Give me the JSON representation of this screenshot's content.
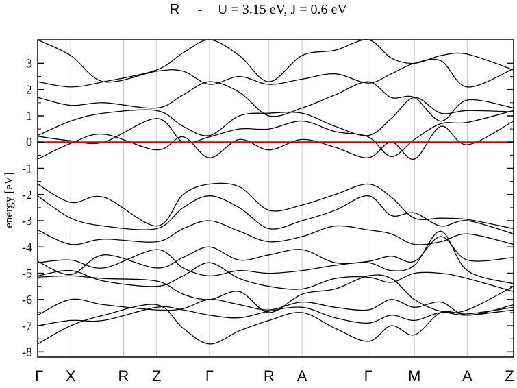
{
  "chart_data": {
    "type": "line",
    "title_prefix": "R",
    "title_dash": "-",
    "title_params": "U = 3.15 eV,  J = 0.6 eV",
    "ylabel": "energy [eV]",
    "xlabel": "",
    "ylim": [
      -8.2,
      3.9
    ],
    "yticks": [
      3,
      2,
      1,
      0,
      -1,
      -2,
      -3,
      -4,
      -5,
      -6,
      -7,
      -8
    ],
    "ytick_labels": [
      "3",
      "2",
      "1",
      "0",
      "-1",
      "-2",
      "-3",
      "-4",
      "-5",
      "-6",
      "-7",
      "-8"
    ],
    "kpoints": [
      {
        "label": "Γ",
        "x": 0
      },
      {
        "label": "X",
        "x": 0.5
      },
      {
        "label": "R",
        "x": 1.3
      },
      {
        "label": "Z",
        "x": 1.8
      },
      {
        "label": "Γ",
        "x": 2.6
      },
      {
        "label": "R",
        "x": 3.5
      },
      {
        "label": "A",
        "x": 4.0
      },
      {
        "label": "Γ",
        "x": 5.0
      },
      {
        "label": "M",
        "x": 5.7
      },
      {
        "label": "A",
        "x": 6.5
      },
      {
        "label": "Z",
        "x": 7.2
      }
    ],
    "fermi_level": 0,
    "fermi_color": "#e00000",
    "band_color": "#000000",
    "grid_color": "#c8c8c8",
    "grid": "vertical lines at k-points",
    "series": [
      {
        "values": [
          -7.7,
          -7.0,
          -6.6,
          -6.2,
          -7.1,
          -7.7,
          -7.2,
          -6.8,
          -6.5,
          -7.1,
          -7.6,
          -7.0,
          -7.35,
          -6.5,
          -6.55,
          -6.3
        ]
      },
      {
        "values": [
          -7.0,
          -6.8,
          -6.8,
          -6.3,
          -6.4,
          -6.6,
          -6.7,
          -6.45,
          -6.3,
          -6.7,
          -6.9,
          -6.6,
          -6.8,
          -6.5,
          -6.6,
          -6.4
        ]
      },
      {
        "values": [
          -6.6,
          -6.0,
          -6.2,
          -6.4,
          -6.35,
          -6.0,
          -6.2,
          -6.4,
          -6.1,
          -6.3,
          -6.4,
          -6.0,
          -6.3,
          -6.1,
          -6.6,
          -6.2
        ]
      },
      {
        "values": [
          -5.15,
          -5.1,
          -5.2,
          -5.3,
          -5.8,
          -6.0,
          -5.7,
          -6.5,
          -5.8,
          -5.6,
          -5.1,
          -5.2,
          -6.0,
          -6.45,
          -6.4,
          -5.5
        ]
      },
      {
        "values": [
          -5.1,
          -4.9,
          -5.3,
          -5.5,
          -5.1,
          -4.6,
          -5.2,
          -5.5,
          -5.6,
          -5.2,
          -5.15,
          -5.35,
          -5.0,
          -5.0,
          -5.2,
          -5.7
        ]
      },
      {
        "values": [
          -4.6,
          -4.5,
          -4.8,
          -4.1,
          -4.8,
          -5.1,
          -4.9,
          -5.0,
          -4.9,
          -4.7,
          -4.6,
          -4.9,
          -4.7,
          -3.4,
          -4.9,
          -5.4
        ]
      },
      {
        "values": [
          -4.55,
          -5.05,
          -4.3,
          -4.8,
          -4.4,
          -4.0,
          -4.5,
          -4.3,
          -4.1,
          -4.6,
          -4.55,
          -4.35,
          -4.55,
          -3.6,
          -4.5,
          -4.4
        ]
      },
      {
        "values": [
          -3.35,
          -3.9,
          -3.7,
          -3.8,
          -3.3,
          -3.0,
          -3.4,
          -3.8,
          -3.6,
          -3.2,
          -3.35,
          -3.5,
          -3.9,
          -3.8,
          -3.5,
          -3.9
        ]
      },
      {
        "values": [
          -2.05,
          -2.9,
          -3.2,
          -3.3,
          -2.5,
          -2.05,
          -2.5,
          -3.3,
          -3.0,
          -2.6,
          -2.05,
          -2.8,
          -2.7,
          -3.2,
          -3.0,
          -3.5
        ]
      },
      {
        "values": [
          -1.6,
          -2.3,
          -2.1,
          -3.2,
          -2.0,
          -1.6,
          -1.7,
          -2.6,
          -2.4,
          -2.0,
          -1.6,
          -2.1,
          -2.9,
          -2.9,
          -2.95,
          -3.3
        ]
      },
      {
        "values": [
          -0.65,
          -0.05,
          0.3,
          -0.3,
          0.2,
          -0.6,
          0.1,
          -0.3,
          0.1,
          -0.2,
          -0.6,
          0.0,
          -0.65,
          0.6,
          -0.1,
          0.8
        ]
      },
      {
        "values": [
          0.22,
          0.05,
          0.0,
          0.9,
          0.0,
          0.2,
          0.5,
          0.5,
          0.8,
          0.4,
          0.2,
          -0.55,
          0.1,
          0.7,
          0.75,
          1.2
        ]
      },
      {
        "values": [
          0.25,
          0.8,
          1.1,
          1.2,
          0.6,
          0.25,
          1.0,
          1.1,
          1.1,
          0.6,
          0.25,
          0.9,
          1.7,
          1.1,
          1.2,
          1.15
        ]
      },
      {
        "values": [
          1.7,
          1.4,
          1.5,
          1.3,
          1.8,
          2.3,
          1.9,
          1.0,
          1.3,
          1.8,
          2.3,
          1.7,
          1.7,
          0.8,
          1.6,
          1.3
        ]
      },
      {
        "values": [
          2.3,
          2.1,
          2.3,
          2.75,
          3.4,
          3.9,
          3.3,
          2.3,
          3.3,
          3.5,
          3.9,
          3.2,
          3.0,
          3.3,
          3.35,
          2.75
        ]
      },
      {
        "values": [
          3.9,
          3.3,
          2.3,
          2.7,
          2.7,
          2.2,
          2.5,
          2.2,
          2.4,
          2.6,
          2.25,
          2.6,
          3.0,
          3.1,
          2.1,
          2.8
        ]
      }
    ],
    "x": [
      0,
      0.5,
      1.0,
      1.8,
      2.2,
      2.6,
      3.05,
      3.5,
      4.0,
      4.5,
      5.0,
      5.35,
      5.7,
      6.1,
      6.5,
      7.2
    ]
  }
}
